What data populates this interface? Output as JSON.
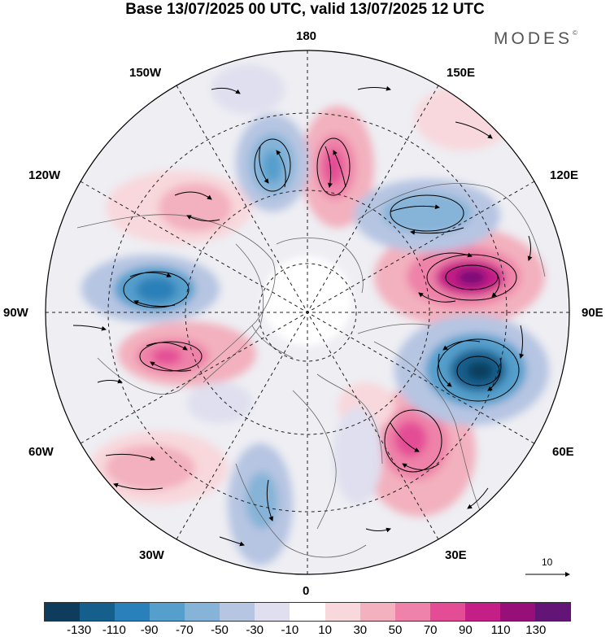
{
  "title": "Base 13/07/2025 00 UTC, valid 13/07/2025 12 UTC",
  "brand": "MODES",
  "brand_mark": "©",
  "longitude_labels": {
    "top": "180",
    "top_left": "150W",
    "top_right": "150E",
    "upper_left": "120W",
    "upper_right": "120E",
    "left": "90W",
    "right": "90E",
    "lower_left": "60W",
    "lower_right": "60E",
    "bottom_left": "30W",
    "bottom_right": "30E",
    "bottom": "0"
  },
  "reference_vector_label": "10",
  "colorbar": {
    "colors": [
      "#0d3c5c",
      "#155f8c",
      "#2a80b8",
      "#559fcc",
      "#85b4d8",
      "#b6c5e2",
      "#dfdfef",
      "#ffffff",
      "#f8d8dc",
      "#f3b0be",
      "#ee82a8",
      "#e44d96",
      "#c31f86",
      "#971079",
      "#621477"
    ],
    "tick_labels": [
      "-130",
      "-110",
      "-90",
      "-70",
      "-50",
      "-30",
      "-10",
      "10",
      "30",
      "50",
      "70",
      "90",
      "110",
      "130"
    ]
  }
}
